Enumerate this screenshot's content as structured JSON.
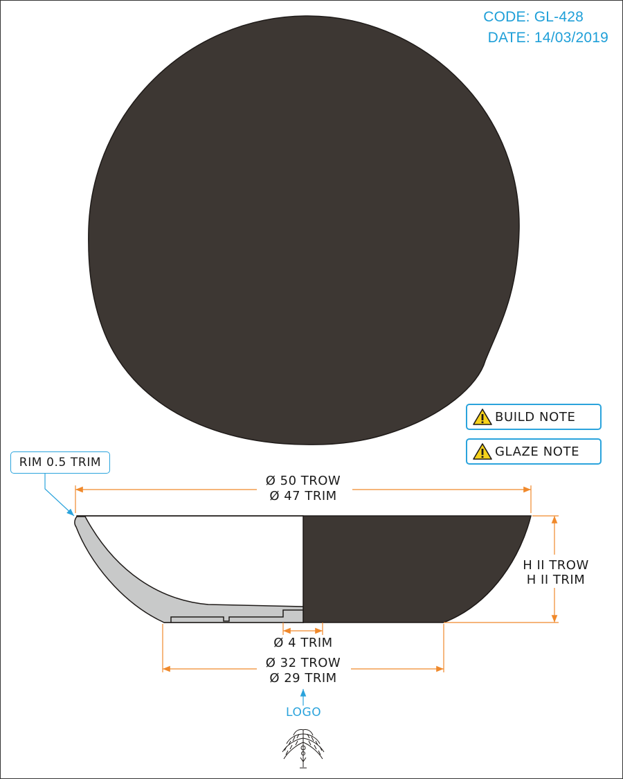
{
  "header": {
    "code": "CODE: GL-428",
    "date": "DATE: 14/03/2019"
  },
  "notes": [
    {
      "label": "BUILD NOTE",
      "icon": "warning-icon"
    },
    {
      "label": "GLAZE NOTE",
      "icon": "warning-icon"
    }
  ],
  "callout": {
    "label": "RIM 0.5 TRIM"
  },
  "dimensions": {
    "top_diameter_trow": "Ø 50 TROW",
    "top_diameter_trim": "Ø 47 TRIM",
    "height_trow": "H II TROW",
    "height_trim": "H II TRIM",
    "foot_hole_trim": "Ø 4 TRIM",
    "base_diameter_trow": "Ø 32 TROW",
    "base_diameter_trim": "Ø 29 TRIM"
  },
  "logo": {
    "label": "LOGO"
  },
  "colors": {
    "bowl_fill": "#3d3733",
    "section_fill": "#c8c9c9",
    "dimension_line": "#f0892b",
    "callout_blue": "#2aa3dc",
    "header_blue": "#1e9fd8",
    "warning_yellow": "#f6d21b"
  }
}
